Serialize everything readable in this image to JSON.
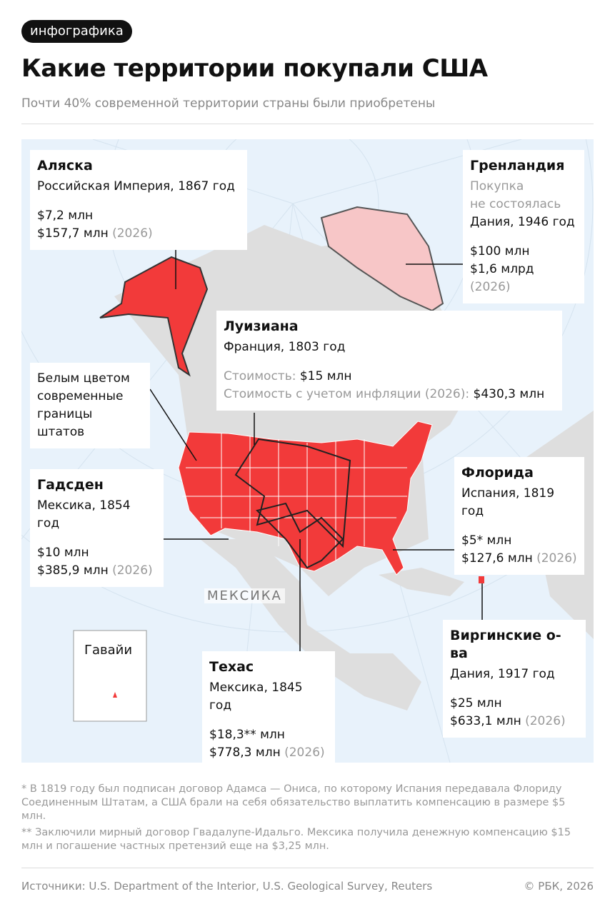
{
  "header": {
    "tag": "инфографика",
    "title": "Какие территории покупали США",
    "subtitle": "Почти 40% современной территории страны были приобретены"
  },
  "callouts": {
    "alaska": {
      "name": "Аляска",
      "seller": "Российская Империя, 1867 год",
      "price": "$7,2 млн",
      "price_now": "$157,7 млн",
      "year_note": "(2026)"
    },
    "greenland": {
      "name": "Гренландия",
      "note": [
        "Покупка",
        "не состоялась"
      ],
      "seller": "Дания, 1946 год",
      "price": "$100 млн",
      "price_now": "$1,6 млрд",
      "year_note": "(2026)"
    },
    "louisiana": {
      "name": "Луизиана",
      "seller": "Франция, 1803 год",
      "price_label": "Стоимость:",
      "price": "$15 млн",
      "price_now_label": "Стоимость с учетом инфляции (2026):",
      "price_now": "$430,3 млн"
    },
    "gadsden": {
      "name": "Гадсден",
      "seller": "Мексика, 1854 год",
      "price": "$10 млн",
      "price_now": "$385,9 млн",
      "year_note": "(2026)"
    },
    "florida": {
      "name": "Флорида",
      "seller": "Испания, 1819 год",
      "price": "$5* млн",
      "price_now": "$127,6 млн",
      "year_note": "(2026)"
    },
    "virgin_islands": {
      "name": "Виргинские о-ва",
      "seller": "Дания, 1917 год",
      "price": "$25 млн",
      "price_now": "$633,1 млн",
      "year_note": "(2026)"
    },
    "texas": {
      "name": "Техас",
      "seller": "Мексика, 1845 год",
      "price": "$18,3** млн",
      "price_now": "$778,3 млн",
      "year_note": "(2026)"
    }
  },
  "legend_note": "Белым цветом современные границы штатов",
  "map_labels": {
    "mexico": "МЕКСИКА",
    "hawaii": "Гавайи"
  },
  "footnotes": [
    "* В 1819 году был подписан договор Адамса — Ониса, по которому Испания передавала Флориду Соединенным Штатам, а США брали на себя обязательство выплатить компенсацию в размере $5 млн.",
    "** Заключили мирный договор Гвадалупе-Идальго. Мексика получила денежную компенсацию $15 млн и погашение частных претензий еще на $3,25 млн."
  ],
  "footer": {
    "sources": "Источники: U.S. Department of the Interior, U.S. Geological Survey, Reuters",
    "copyright": "© РБК, 2026"
  }
}
